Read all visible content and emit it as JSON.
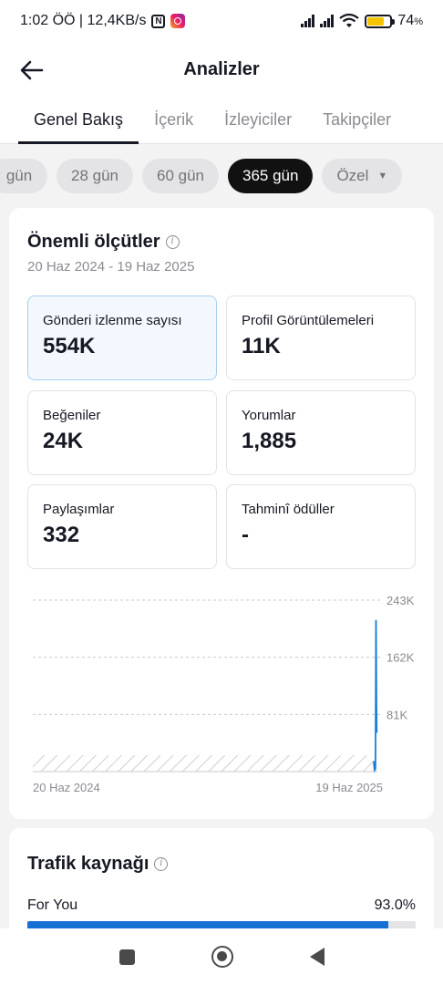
{
  "status_bar": {
    "time_speed": "1:02 ÖÖ | 12,4KB/s",
    "nfc_icon_glyph": "N",
    "battery_percent": "74",
    "battery_unit": "%",
    "battery_level": 0.74
  },
  "header": {
    "title": "Analizler",
    "back_icon": "arrow-left-icon"
  },
  "tabs": [
    {
      "label": "Genel Bakış",
      "active": true
    },
    {
      "label": "İçerik",
      "active": false
    },
    {
      "label": "İzleyiciler",
      "active": false
    },
    {
      "label": "Takipçiler",
      "active": false
    }
  ],
  "ranges": [
    {
      "label": "gün",
      "active": false
    },
    {
      "label": "28 gün",
      "active": false
    },
    {
      "label": "60 gün",
      "active": false
    },
    {
      "label": "365 gün",
      "active": true
    },
    {
      "label": "Özel",
      "active": false
    }
  ],
  "key_metrics": {
    "title": "Önemli ölçütler",
    "info_glyph": "i",
    "date_range": "20 Haz 2024 - 19 Haz 2025",
    "items": [
      {
        "label": "Gönderi izlenme sayısı",
        "value": "554K",
        "selected": true
      },
      {
        "label": "Profil Görüntülemeleri",
        "value": "11K",
        "selected": false
      },
      {
        "label": "Beğeniler",
        "value": "24K",
        "selected": false
      },
      {
        "label": "Yorumlar",
        "value": "1,885",
        "selected": false
      },
      {
        "label": "Paylaşımlar",
        "value": "332",
        "selected": false
      },
      {
        "label": "Tahminî ödüller",
        "value": "-",
        "selected": false
      }
    ]
  },
  "chart_data": {
    "type": "line",
    "y_ticks": [
      "243K",
      "162K",
      "81K"
    ],
    "x_labels": [
      "20 Haz 2024",
      "19 Haz 2025"
    ],
    "ylim": [
      0,
      243000
    ],
    "color": "#1a7fd6",
    "points": [
      {
        "day": 363,
        "value": 15000
      },
      {
        "day": 364,
        "value": 2000
      },
      {
        "day": 365,
        "value": 4000
      },
      {
        "day": 365.5,
        "value": 215000
      },
      {
        "day": 366,
        "value": 95000
      },
      {
        "day": 366.3,
        "value": 55000
      }
    ]
  },
  "traffic": {
    "title": "Trafik kaynağı",
    "info_glyph": "i",
    "source_label": "For You",
    "source_pct_text": "93.0%",
    "source_pct": 93.0
  },
  "nav": {
    "recents_icon": "square-icon",
    "home_icon": "circle-icon",
    "back_icon": "triangle-back-icon"
  }
}
